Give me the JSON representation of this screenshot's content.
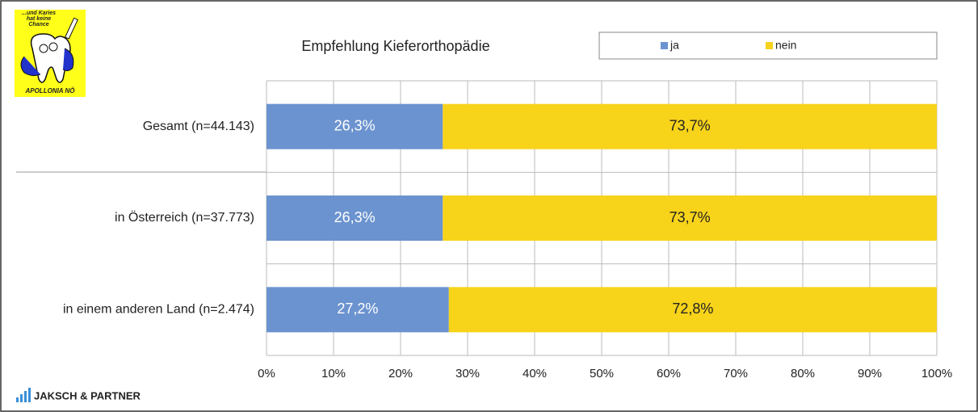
{
  "branding": {
    "logo_caption_lines": [
      "...und Karies",
      "hat keine",
      "Chance"
    ],
    "logo_name": "APOLLONIA NÖ",
    "footer": "JAKSCH & PARTNER"
  },
  "chart_data": {
    "type": "stacked-bar-horizontal",
    "title": "Empfehlung Kieferorthopädie",
    "categories": [
      "Gesamt (n=44.143)",
      "in Österreich (n=37.773)",
      "in einem anderen Land (n=2.474)"
    ],
    "series": [
      {
        "name": "ja",
        "color": "#6b93cf",
        "values": [
          26.3,
          26.3,
          27.2
        ],
        "value_labels": [
          "26,3%",
          "26,3%",
          "27,2%"
        ]
      },
      {
        "name": "nein",
        "color": "#f7d31a",
        "values": [
          73.7,
          73.7,
          72.8
        ],
        "value_labels": [
          "73,7%",
          "73,7%",
          "72,8%"
        ]
      }
    ],
    "xlim": [
      0,
      100
    ],
    "xticks": [
      {
        "value": 0,
        "label": "0%"
      },
      {
        "value": 10,
        "label": "10%"
      },
      {
        "value": 20,
        "label": "20%"
      },
      {
        "value": 30,
        "label": "30%"
      },
      {
        "value": 40,
        "label": "40%"
      },
      {
        "value": 50,
        "label": "50%"
      },
      {
        "value": 60,
        "label": "60%"
      },
      {
        "value": 70,
        "label": "70%"
      },
      {
        "value": 80,
        "label": "80%"
      },
      {
        "value": 90,
        "label": "90%"
      },
      {
        "value": 100,
        "label": "100%"
      }
    ],
    "grid": true,
    "legend": "top-right"
  }
}
